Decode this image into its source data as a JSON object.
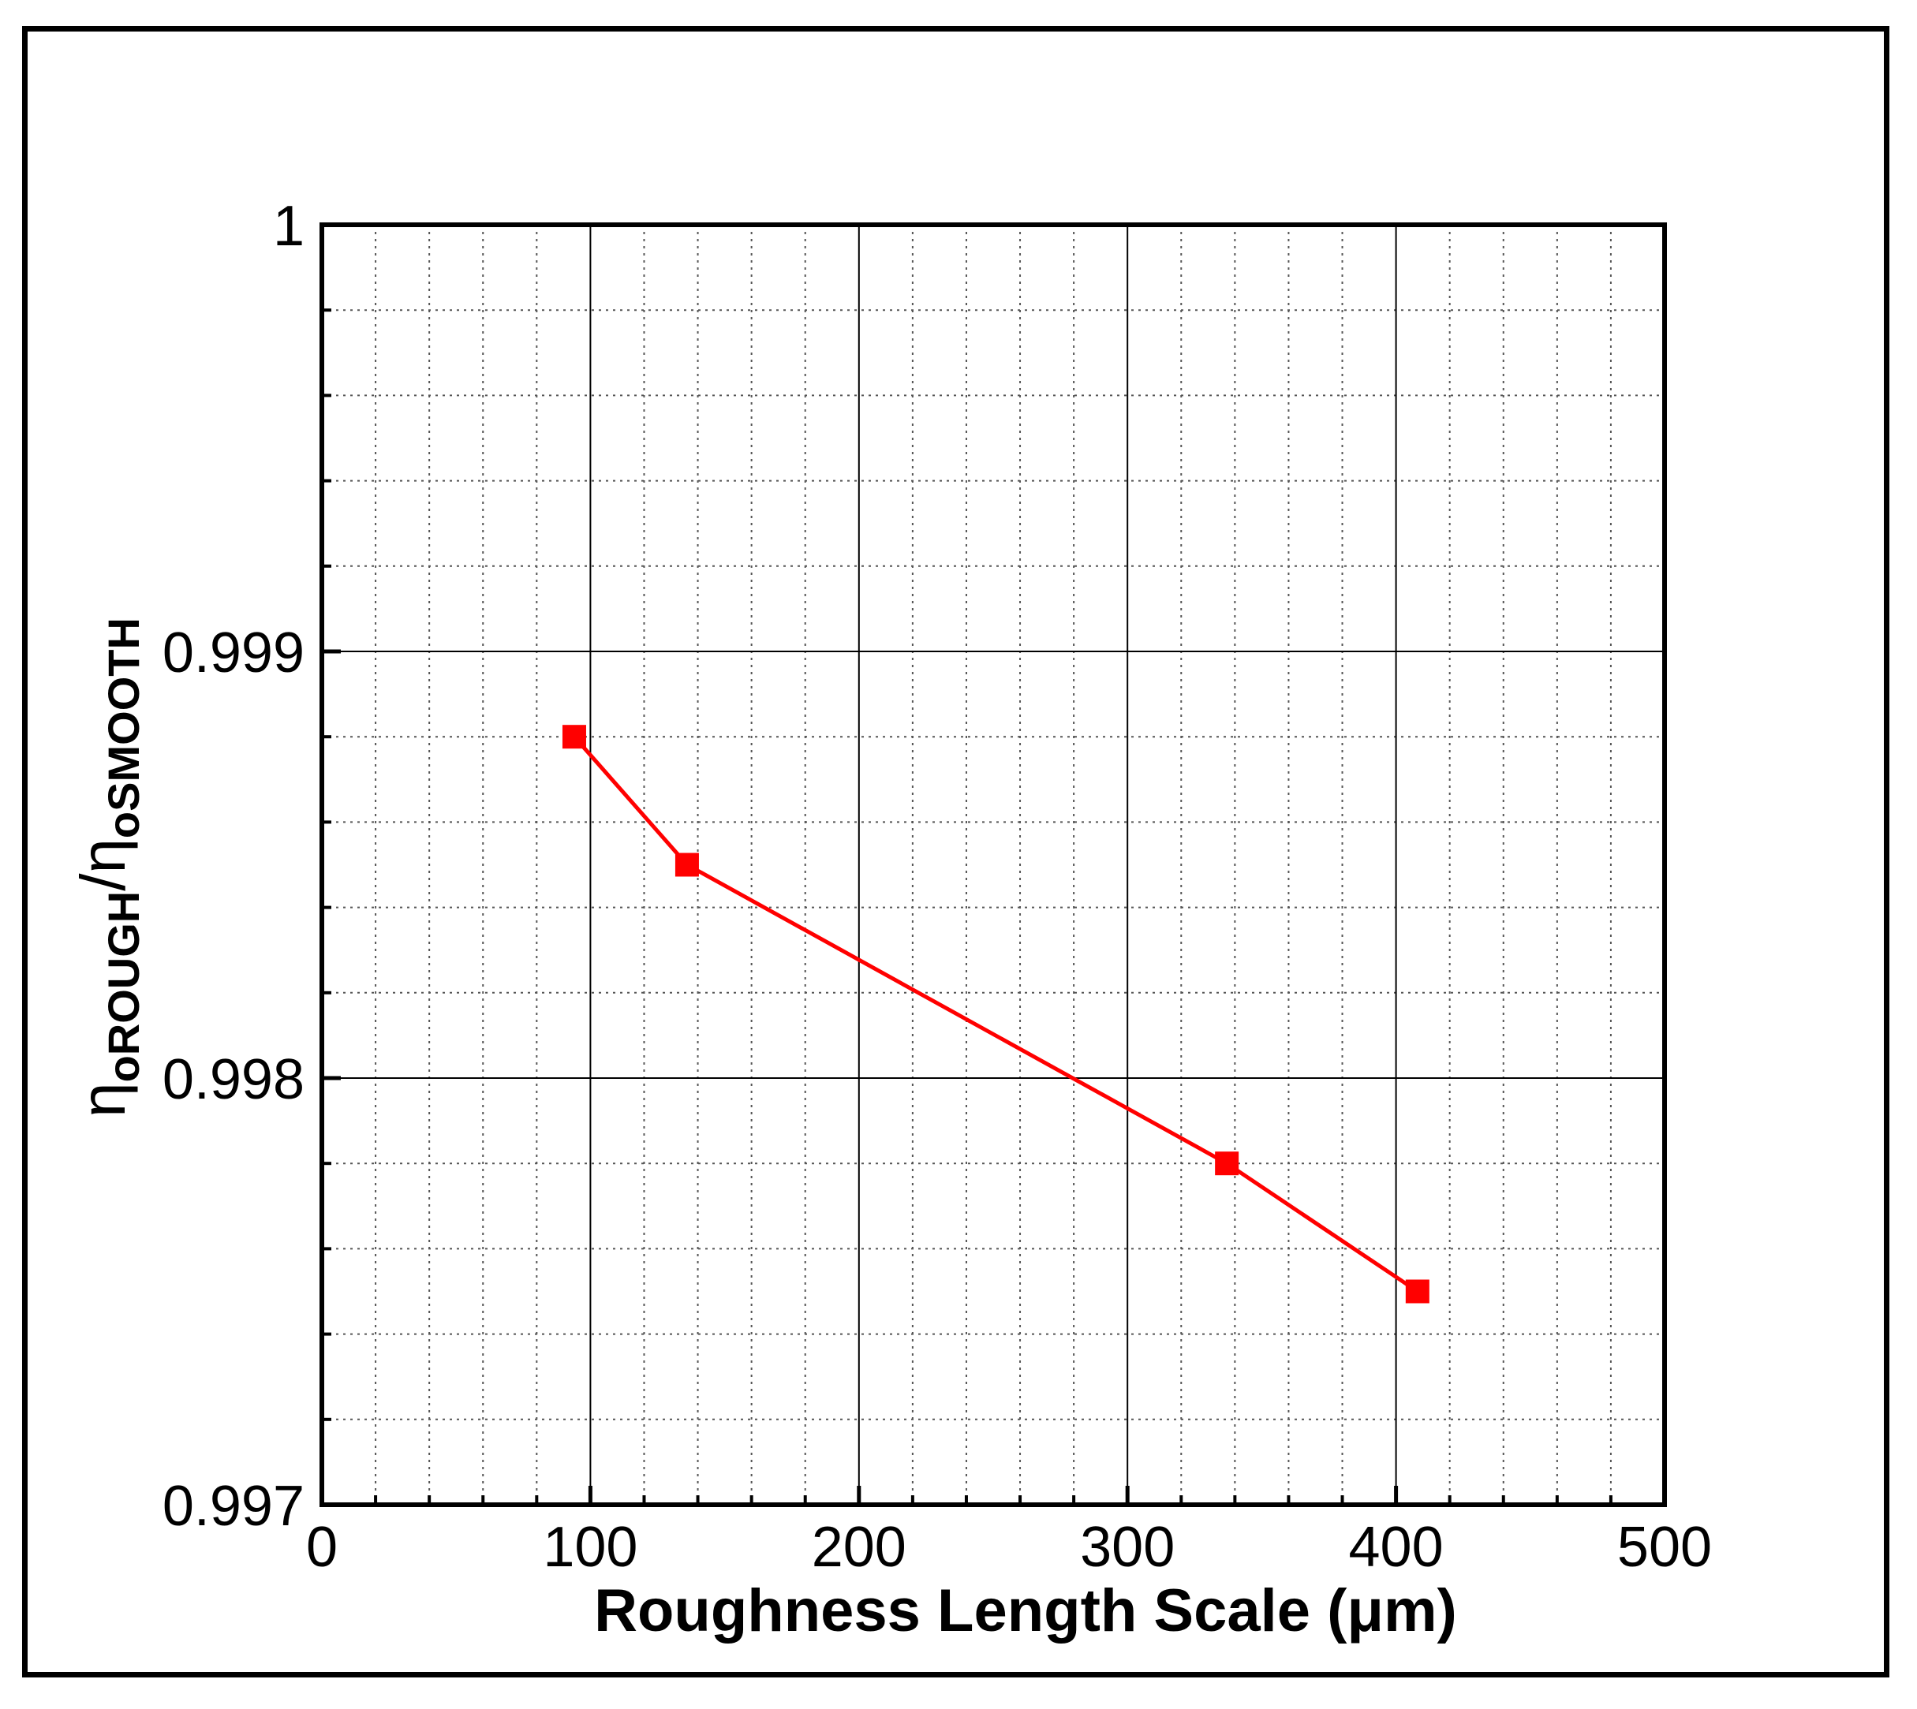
{
  "chart_data": {
    "type": "line",
    "title": "",
    "xlabel": "Roughness Length Scale (μm)",
    "ylabel": {
      "main": "η",
      "sub1": "oROUGH",
      "sep": "/η",
      "sub2": "oSMOOTH"
    },
    "xlim": [
      0,
      500
    ],
    "ylim": [
      0.997,
      1
    ],
    "x_ticks": [
      "0",
      "100",
      "200",
      "300",
      "400",
      "500"
    ],
    "y_ticks": [
      "0.997",
      "0.998",
      "0.999",
      "1"
    ],
    "grid": true,
    "series": [
      {
        "color": "#ff0000",
        "marker": "square",
        "points": [
          {
            "x": 94,
            "y": 0.9988
          },
          {
            "x": 136,
            "y": 0.9985
          },
          {
            "x": 337,
            "y": 0.9978
          },
          {
            "x": 408,
            "y": 0.9975
          }
        ]
      }
    ]
  }
}
